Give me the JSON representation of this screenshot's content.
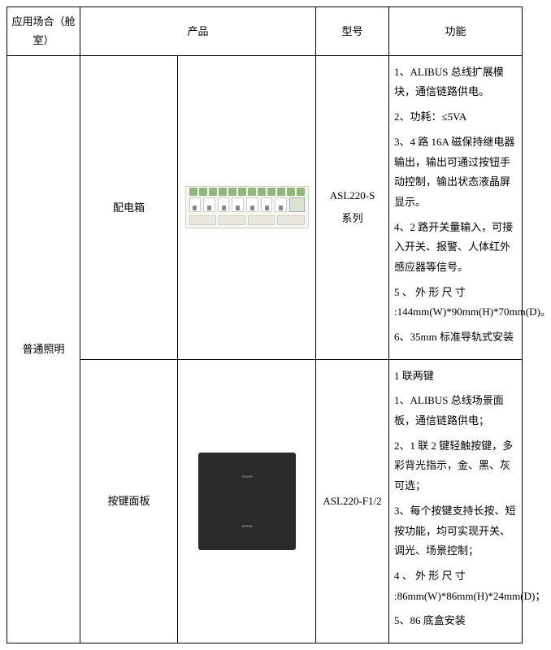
{
  "headers": {
    "application": "应用场合（舱室）",
    "product": "产品",
    "model": "型号",
    "function": "功能"
  },
  "rows": {
    "application": "普通照明",
    "row1": {
      "product": "配电箱",
      "model_line1": "ASL220-S",
      "model_line2": "系列",
      "func": [
        "1、ALIBUS 总线扩展模块，通信链路供电。",
        "2、功耗：≤5VA",
        "3、4 路 16A 磁保持继电器输出，输出可通过按钮手动控制，输出状态液晶屏显示。",
        "4、2 路开关量输入，可接入开关、报警、人体红外感应器等信号。",
        "5 、 外 形 尺 寸 :144mm(W)*90mm(H)*70mm(D)。",
        "6、35mm 标准导轨式安装"
      ]
    },
    "row2": {
      "product": "按键面板",
      "model": "ASL220-F1/2",
      "func": [
        "1 联两键",
        "1、ALIBUS 总线场景面板，通信链路供电；",
        "2、1 联 2 键轻触按键，多彩背光指示，金、黑、灰可选；",
        "3、每个按键支持长按、短按功能，均可实现开关、调光、场景控制；",
        "4 、 外 形 尺 寸 :86mm(W)*86mm(H)*24mm(D)；",
        "5、86 底盒安装"
      ]
    }
  }
}
